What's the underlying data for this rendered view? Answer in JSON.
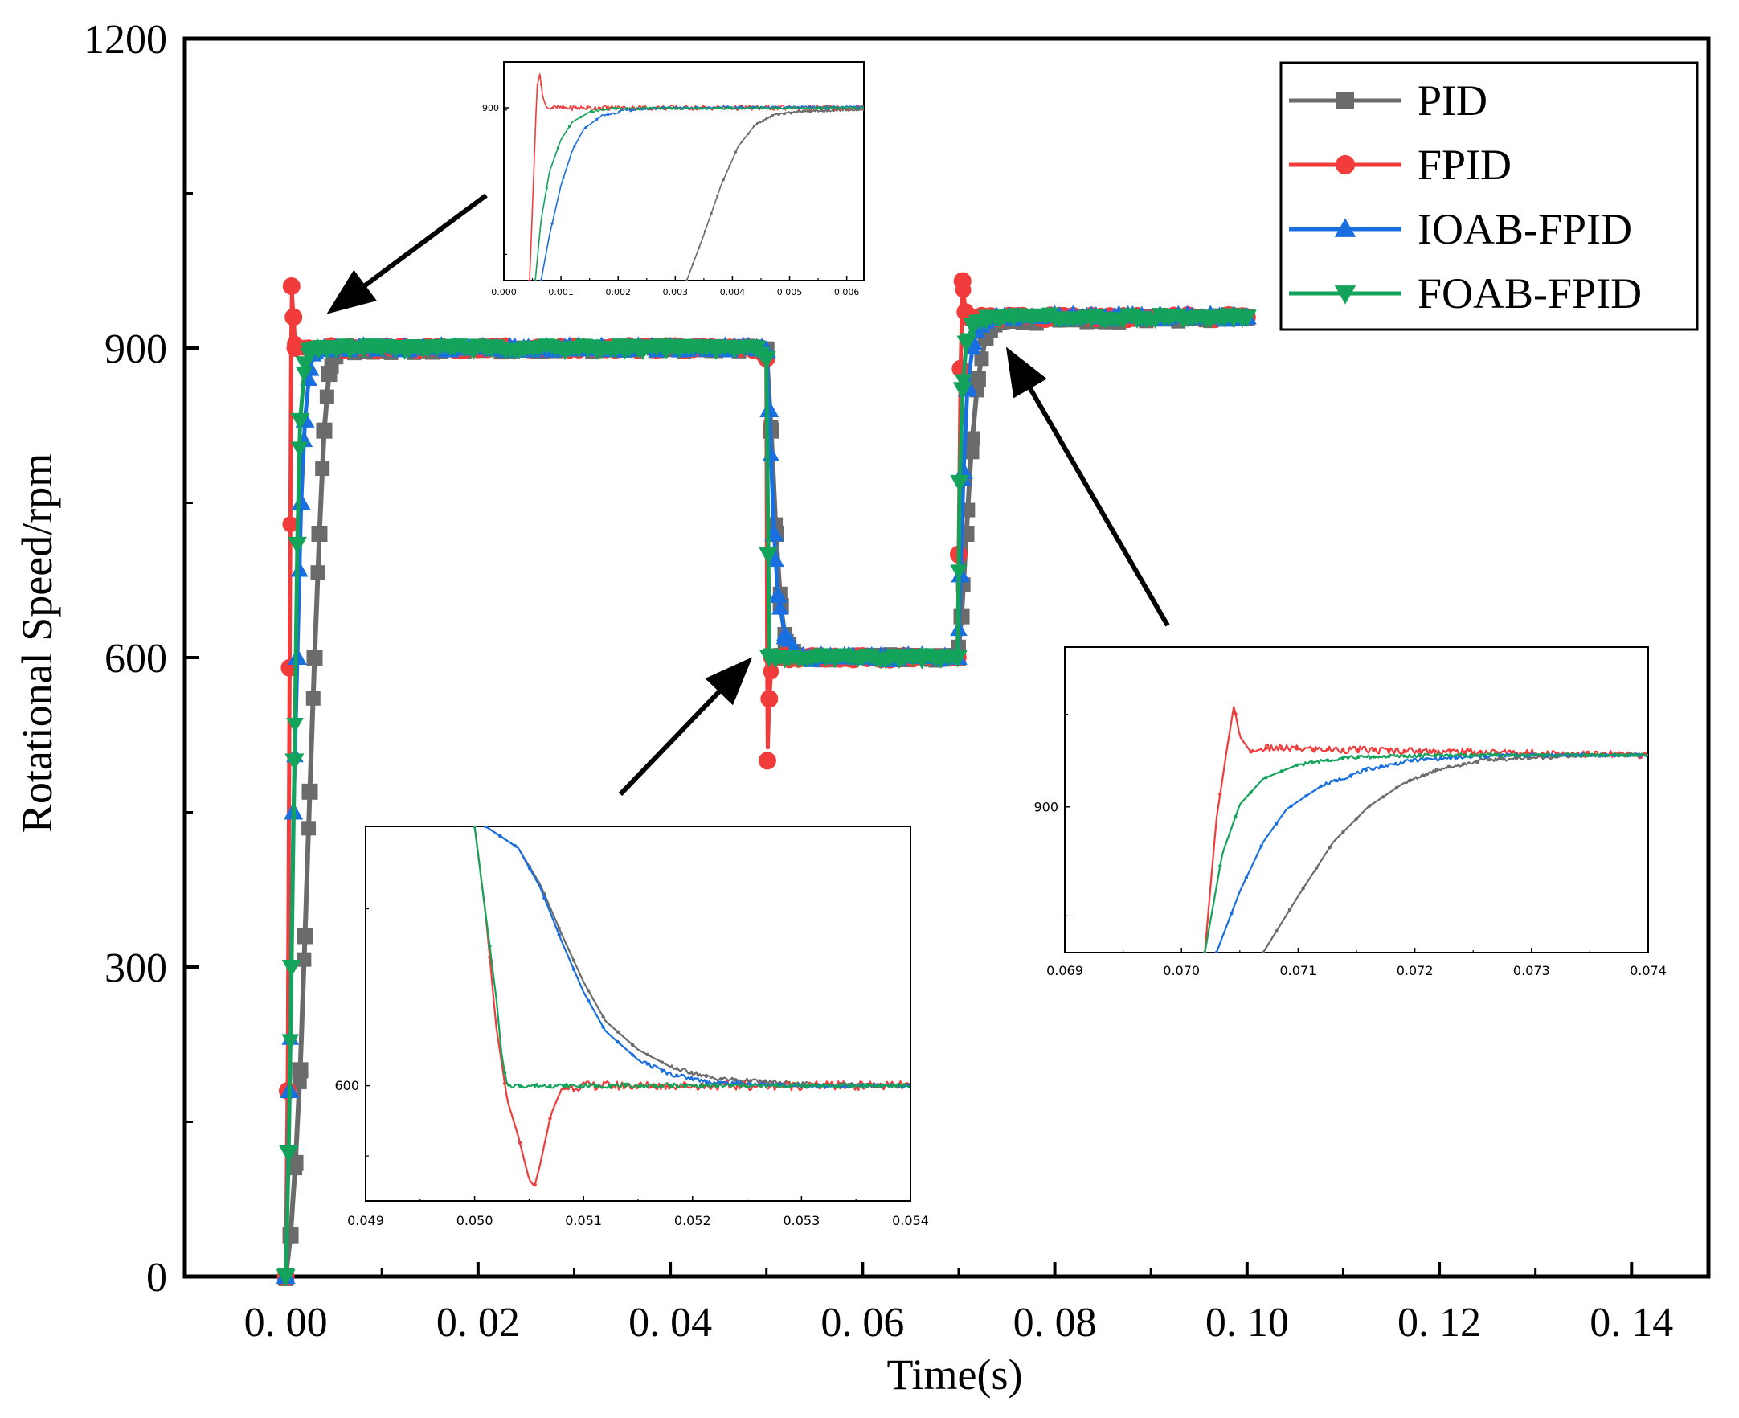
{
  "colors": {
    "PID": "#6b6b6b",
    "FPID": "#f23c3c",
    "IOAB-FPID": "#1a6fe0",
    "FOAB-FPID": "#13a35a",
    "axis": "#000000",
    "arrow": "#000000"
  },
  "chart_data": [
    {
      "id": "main",
      "type": "line",
      "title": "",
      "xlabel": "Time(s)",
      "ylabel": "Rotational Speed/rpm",
      "xlim": [
        -0.0105,
        0.148
      ],
      "ylim": [
        0,
        1200
      ],
      "xticks": [
        0.0,
        0.02,
        0.04,
        0.06,
        0.08,
        0.1,
        0.12,
        0.14
      ],
      "xtick_labels": [
        "0.00",
        "0.02",
        "0.04",
        "0.06",
        "0.08",
        "0.10",
        "0.12",
        "0.14"
      ],
      "yticks": [
        0,
        300,
        600,
        900,
        1200
      ],
      "ytick_labels": [
        "0",
        "300",
        "600",
        "900",
        "1200"
      ],
      "grid": false,
      "legend": {
        "placement": "top-right",
        "entries": [
          "PID",
          "FPID",
          "IOAB-FPID",
          "FOAB-FPID"
        ]
      },
      "reference": {
        "steps": [
          {
            "t": 0.0,
            "value": 900
          },
          {
            "t": 0.05,
            "value": 600
          },
          {
            "t": 0.07,
            "value": 930
          }
        ],
        "end_time": 0.1
      },
      "series": [
        {
          "name": "PID",
          "marker": "square",
          "points": [
            [
              0.0,
              0
            ],
            [
              0.0005,
              40
            ],
            [
              0.001,
              110
            ],
            [
              0.0015,
              200
            ],
            [
              0.002,
              330
            ],
            [
              0.0025,
              470
            ],
            [
              0.003,
              600
            ],
            [
              0.0035,
              720
            ],
            [
              0.004,
              820
            ],
            [
              0.0045,
              875
            ],
            [
              0.005,
              892
            ],
            [
              0.006,
              898
            ],
            [
              0.049,
              900
            ],
            [
              0.05,
              898
            ],
            [
              0.0505,
              820
            ],
            [
              0.051,
              720
            ],
            [
              0.0515,
              650
            ],
            [
              0.052,
              615
            ],
            [
              0.053,
              602
            ],
            [
              0.0545,
              600
            ],
            [
              0.0699,
              600
            ],
            [
              0.0703,
              640
            ],
            [
              0.0708,
              720
            ],
            [
              0.0713,
              800
            ],
            [
              0.072,
              870
            ],
            [
              0.0728,
              910
            ],
            [
              0.0745,
              926
            ],
            [
              0.1,
              930
            ]
          ]
        },
        {
          "name": "FPID",
          "marker": "circle",
          "points": [
            [
              0.0,
              0
            ],
            [
              0.0002,
              180
            ],
            [
              0.0004,
              590
            ],
            [
              0.0006,
              960
            ],
            [
              0.0008,
              930
            ],
            [
              0.001,
              900
            ],
            [
              0.049,
              900
            ],
            [
              0.05,
              890
            ],
            [
              0.0501,
              500
            ],
            [
              0.0503,
              560
            ],
            [
              0.0506,
              600
            ],
            [
              0.0699,
              600
            ],
            [
              0.07,
              700
            ],
            [
              0.0702,
              880
            ],
            [
              0.0704,
              965
            ],
            [
              0.0707,
              935
            ],
            [
              0.071,
              930
            ],
            [
              0.1,
              930
            ]
          ]
        },
        {
          "name": "IOAB-FPID",
          "marker": "triangle-up",
          "points": [
            [
              0.0,
              0
            ],
            [
              0.0004,
              180
            ],
            [
              0.0008,
              450
            ],
            [
              0.0012,
              600
            ],
            [
              0.0016,
              750
            ],
            [
              0.002,
              830
            ],
            [
              0.0025,
              880
            ],
            [
              0.003,
              896
            ],
            [
              0.004,
              900
            ],
            [
              0.049,
              900
            ],
            [
              0.05,
              898
            ],
            [
              0.0503,
              840
            ],
            [
              0.0508,
              720
            ],
            [
              0.0512,
              660
            ],
            [
              0.052,
              620
            ],
            [
              0.053,
              604
            ],
            [
              0.0545,
              600
            ],
            [
              0.0699,
              600
            ],
            [
              0.0702,
              680
            ],
            [
              0.0705,
              780
            ],
            [
              0.0709,
              860
            ],
            [
              0.0715,
              905
            ],
            [
              0.0723,
              922
            ],
            [
              0.074,
              930
            ],
            [
              0.1,
              930
            ]
          ]
        },
        {
          "name": "FOAB-FPID",
          "marker": "triangle-down",
          "points": [
            [
              0.0,
              0
            ],
            [
              0.0003,
              120
            ],
            [
              0.0006,
              300
            ],
            [
              0.0009,
              500
            ],
            [
              0.0012,
              710
            ],
            [
              0.0015,
              830
            ],
            [
              0.002,
              885
            ],
            [
              0.0025,
              898
            ],
            [
              0.0035,
              900
            ],
            [
              0.049,
              900
            ],
            [
              0.05,
              890
            ],
            [
              0.0502,
              700
            ],
            [
              0.0503,
              600
            ],
            [
              0.0699,
              600
            ],
            [
              0.0701,
              770
            ],
            [
              0.0704,
              860
            ],
            [
              0.0708,
              905
            ],
            [
              0.0715,
              922
            ],
            [
              0.073,
              930
            ],
            [
              0.1,
              930
            ]
          ]
        }
      ]
    },
    {
      "id": "inset-start",
      "type": "line",
      "xlim": [
        0.0,
        0.0063
      ],
      "ylim": [
        655,
        965
      ],
      "xticks": [
        0.0,
        0.001,
        0.002,
        0.003,
        0.004,
        0.005,
        0.006
      ],
      "xtick_labels": [
        "0.000",
        "0.001",
        "0.002",
        "0.003",
        "0.004",
        "0.005",
        "0.006"
      ],
      "yticks": [
        900
      ],
      "ytick_labels": [
        "900"
      ],
      "series": [
        {
          "name": "PID",
          "points": [
            [
              0.0032,
              655
            ],
            [
              0.0035,
              720
            ],
            [
              0.0038,
              790
            ],
            [
              0.0041,
              845
            ],
            [
              0.0044,
              876
            ],
            [
              0.0047,
              889
            ],
            [
              0.0052,
              895
            ],
            [
              0.0063,
              898
            ]
          ]
        },
        {
          "name": "FPID",
          "points": [
            [
              0.00045,
              655
            ],
            [
              0.00052,
              800
            ],
            [
              0.00058,
              930
            ],
            [
              0.00063,
              948
            ],
            [
              0.00068,
              915
            ],
            [
              0.00075,
              900
            ],
            [
              0.0063,
              900
            ]
          ]
        },
        {
          "name": "IOAB-FPID",
          "points": [
            [
              0.00065,
              655
            ],
            [
              0.0008,
              720
            ],
            [
              0.001,
              790
            ],
            [
              0.0012,
              840
            ],
            [
              0.0014,
              870
            ],
            [
              0.0017,
              888
            ],
            [
              0.0021,
              896
            ],
            [
              0.0027,
              900
            ],
            [
              0.0063,
              901
            ]
          ]
        },
        {
          "name": "FOAB-FPID",
          "points": [
            [
              0.00055,
              655
            ],
            [
              0.00065,
              740
            ],
            [
              0.0008,
              810
            ],
            [
              0.001,
              855
            ],
            [
              0.0012,
              880
            ],
            [
              0.0015,
              894
            ],
            [
              0.0019,
              899
            ],
            [
              0.0063,
              900
            ]
          ]
        }
      ]
    },
    {
      "id": "inset-drop",
      "type": "line",
      "xlim": [
        0.049,
        0.054
      ],
      "ylim": [
        520,
        780
      ],
      "xticks": [
        0.049,
        0.05,
        0.051,
        0.052,
        0.053,
        0.054
      ],
      "xtick_labels": [
        "0.049",
        "0.050",
        "0.051",
        "0.052",
        "0.053",
        "0.054"
      ],
      "yticks": [
        600
      ],
      "ytick_labels": [
        "600"
      ],
      "series": [
        {
          "name": "PID",
          "points": [
            [
              0.0501,
              780
            ],
            [
              0.0504,
              765
            ],
            [
              0.0506,
              740
            ],
            [
              0.0508,
              705
            ],
            [
              0.051,
              672
            ],
            [
              0.0512,
              645
            ],
            [
              0.0515,
              625
            ],
            [
              0.0518,
              613
            ],
            [
              0.0522,
              605
            ],
            [
              0.053,
              601
            ],
            [
              0.054,
              600
            ]
          ]
        },
        {
          "name": "FPID",
          "points": [
            [
              0.05,
              780
            ],
            [
              0.0501,
              720
            ],
            [
              0.0502,
              640
            ],
            [
              0.0503,
              590
            ],
            [
              0.0504,
              565
            ],
            [
              0.0505,
              535
            ],
            [
              0.05055,
              530
            ],
            [
              0.0506,
              545
            ],
            [
              0.0507,
              580
            ],
            [
              0.0508,
              598
            ],
            [
              0.051,
              600
            ],
            [
              0.054,
              600
            ]
          ]
        },
        {
          "name": "IOAB-FPID",
          "points": [
            [
              0.0501,
              780
            ],
            [
              0.0504,
              765
            ],
            [
              0.0506,
              738
            ],
            [
              0.0508,
              700
            ],
            [
              0.051,
              665
            ],
            [
              0.0512,
              638
            ],
            [
              0.0515,
              618
            ],
            [
              0.0518,
              608
            ],
            [
              0.0522,
              602
            ],
            [
              0.053,
              600
            ],
            [
              0.054,
              600
            ]
          ]
        },
        {
          "name": "FOAB-FPID",
          "points": [
            [
              0.05,
              780
            ],
            [
              0.0501,
              720
            ],
            [
              0.0502,
              660
            ],
            [
              0.05025,
              620
            ],
            [
              0.0503,
              600
            ],
            [
              0.054,
              600
            ]
          ]
        }
      ]
    },
    {
      "id": "inset-rise",
      "type": "line",
      "xlim": [
        0.069,
        0.074
      ],
      "ylim": [
        838,
        968
      ],
      "xticks": [
        0.069,
        0.07,
        0.071,
        0.072,
        0.073,
        0.074
      ],
      "xtick_labels": [
        "0.069",
        "0.070",
        "0.071",
        "0.072",
        "0.073",
        "0.074"
      ],
      "yticks": [
        900
      ],
      "ytick_labels": [
        "900"
      ],
      "series": [
        {
          "name": "PID",
          "points": [
            [
              0.0707,
              838
            ],
            [
              0.071,
              862
            ],
            [
              0.0713,
              885
            ],
            [
              0.0716,
              900
            ],
            [
              0.0719,
              910
            ],
            [
              0.0722,
              916
            ],
            [
              0.0726,
              920
            ],
            [
              0.0735,
              922
            ],
            [
              0.074,
              922
            ]
          ]
        },
        {
          "name": "FPID",
          "points": [
            [
              0.0702,
              838
            ],
            [
              0.0703,
              895
            ],
            [
              0.0704,
              928
            ],
            [
              0.07045,
              943
            ],
            [
              0.0705,
              930
            ],
            [
              0.0706,
              923
            ],
            [
              0.0707,
              925
            ],
            [
              0.074,
              922
            ]
          ]
        },
        {
          "name": "IOAB-FPID",
          "points": [
            [
              0.0703,
              838
            ],
            [
              0.0705,
              864
            ],
            [
              0.0707,
              885
            ],
            [
              0.0709,
              899
            ],
            [
              0.0712,
              909
            ],
            [
              0.0716,
              916
            ],
            [
              0.072,
              920
            ],
            [
              0.0728,
              922
            ],
            [
              0.074,
              922
            ]
          ]
        },
        {
          "name": "FOAB-FPID",
          "points": [
            [
              0.0702,
              838
            ],
            [
              0.07035,
              880
            ],
            [
              0.0705,
              901
            ],
            [
              0.0707,
              912
            ],
            [
              0.071,
              918
            ],
            [
              0.0714,
              921
            ],
            [
              0.0722,
              922
            ],
            [
              0.074,
              922
            ]
          ]
        }
      ]
    }
  ]
}
